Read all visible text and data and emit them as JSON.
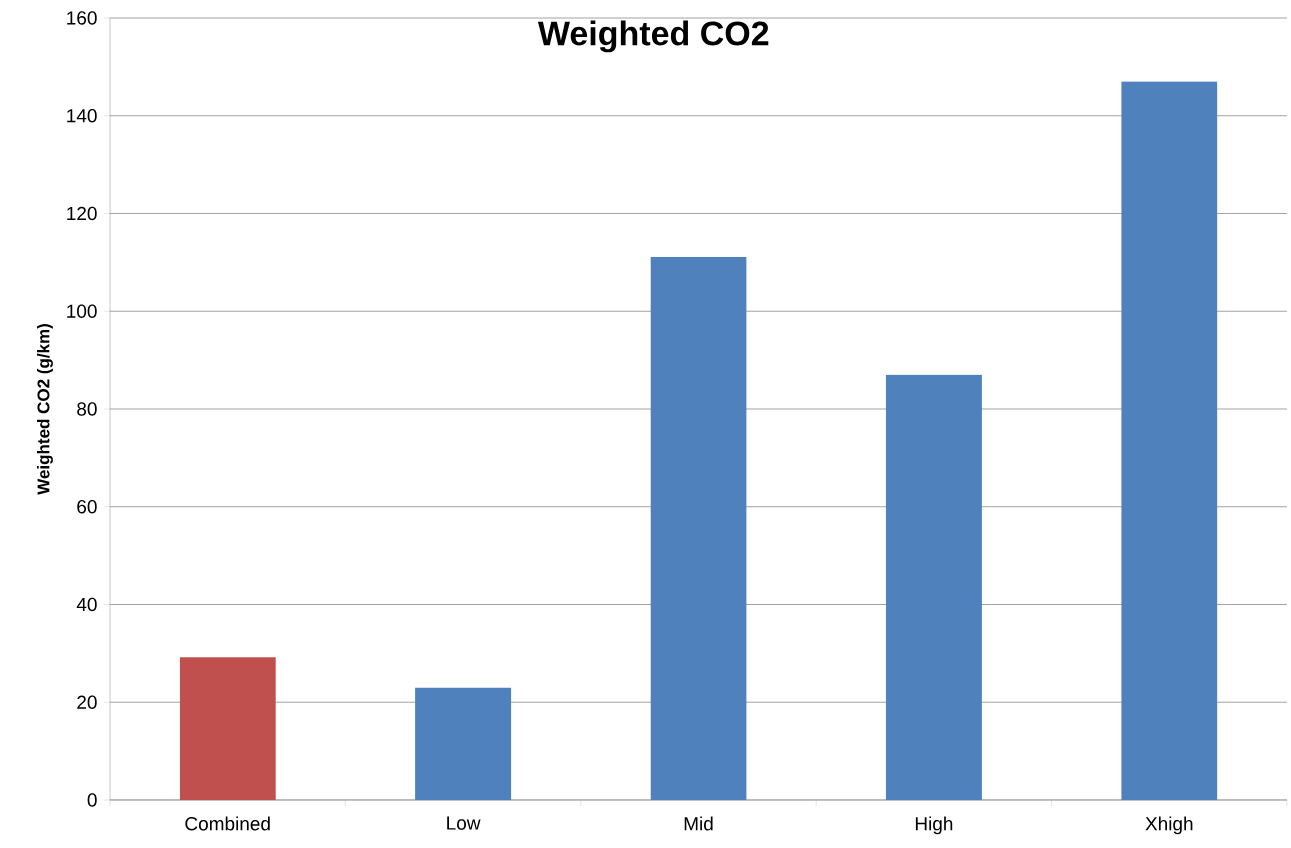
{
  "chart_data": {
    "type": "bar",
    "title": "Weighted CO2",
    "ylabel": "Weighted CO2 (g/km)",
    "categories": [
      "Combined",
      "Low",
      "Mid",
      "High",
      "Xhigh"
    ],
    "values": [
      29.2,
      23,
      111.1,
      87,
      147
    ],
    "colors": [
      "#c0504d",
      "#4f81bd",
      "#4f81bd",
      "#4f81bd",
      "#4f81bd"
    ],
    "ylim": [
      0,
      160
    ],
    "yticks": [
      0,
      20,
      40,
      60,
      80,
      100,
      120,
      140,
      160
    ],
    "grid": "y"
  }
}
